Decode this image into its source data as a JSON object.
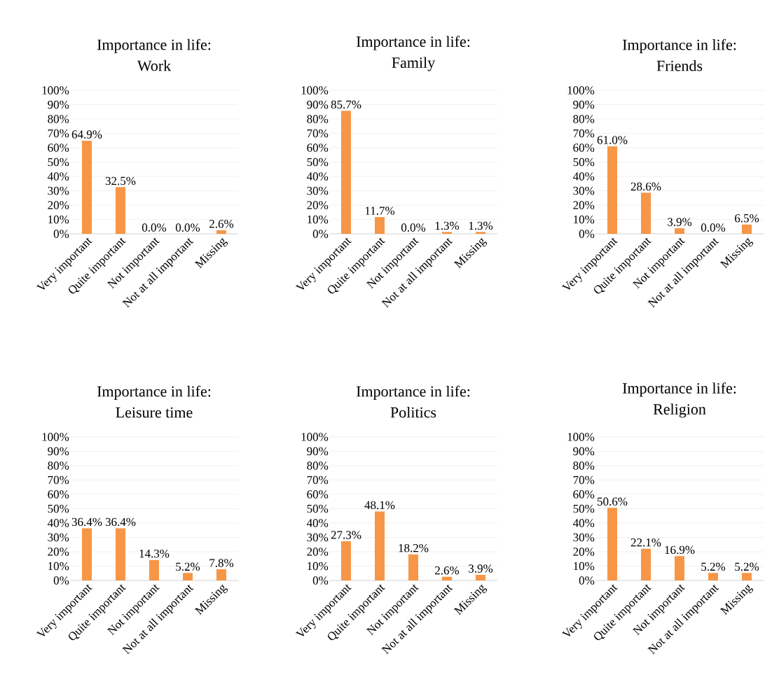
{
  "chart_data": [
    {
      "type": "bar",
      "title": "Importance in life:",
      "subtitle": "Work",
      "categories": [
        "Very important",
        "Quite important",
        "Not important",
        "Not at all important",
        "Missing"
      ],
      "values": [
        64.9,
        32.5,
        0.0,
        0.0,
        2.6
      ],
      "value_labels": [
        "64.9%",
        "32.5%",
        "0.0%",
        "0.0%",
        "2.6%"
      ],
      "color": "#f79646",
      "ylim": [
        0,
        100
      ],
      "yticks": [
        {
          "value": 0,
          "label": "0%"
        },
        {
          "value": 10,
          "label": "10%"
        },
        {
          "value": 20,
          "label": "20%"
        },
        {
          "value": 30,
          "label": "30%"
        },
        {
          "value": 40,
          "label": "40%"
        },
        {
          "value": 50,
          "label": "50%"
        },
        {
          "value": 60,
          "label": "60%"
        },
        {
          "value": 70,
          "label": "70%"
        },
        {
          "value": 80,
          "label": "80%"
        },
        {
          "value": 90,
          "label": "90%"
        },
        {
          "value": 100,
          "label": "100%"
        }
      ],
      "grid": "y"
    },
    {
      "type": "bar",
      "title": "Importance in life:",
      "subtitle": "Family",
      "categories": [
        "Very important",
        "Quite important",
        "Not important",
        "Not at all important",
        "Missing"
      ],
      "values": [
        85.7,
        11.7,
        0.0,
        1.3,
        1.3
      ],
      "value_labels": [
        "85.7%",
        "11.7%",
        "0.0%",
        "1.3%",
        "1.3%"
      ],
      "color": "#f79646",
      "ylim": [
        0,
        100
      ],
      "yticks": [
        {
          "value": 0,
          "label": "0%"
        },
        {
          "value": 10,
          "label": "10%"
        },
        {
          "value": 20,
          "label": "20%"
        },
        {
          "value": 30,
          "label": "30%"
        },
        {
          "value": 40,
          "label": "40%"
        },
        {
          "value": 50,
          "label": "50%"
        },
        {
          "value": 60,
          "label": "60%"
        },
        {
          "value": 70,
          "label": "70%"
        },
        {
          "value": 80,
          "label": "80%"
        },
        {
          "value": 90,
          "label": "90%"
        },
        {
          "value": 100,
          "label": "100%"
        }
      ],
      "grid": "y"
    },
    {
      "type": "bar",
      "title": "Importance in life:",
      "subtitle": "Friends",
      "categories": [
        "Very important",
        "Quite important",
        "Not important",
        "Not at all important",
        "Missing"
      ],
      "values": [
        61.0,
        28.6,
        3.9,
        0.0,
        6.5
      ],
      "value_labels": [
        "61.0%",
        "28.6%",
        "3.9%",
        "0.0%",
        "6.5%"
      ],
      "color": "#f79646",
      "ylim": [
        0,
        100
      ],
      "yticks": [
        {
          "value": 0,
          "label": "0%"
        },
        {
          "value": 10,
          "label": "10%"
        },
        {
          "value": 20,
          "label": "20%"
        },
        {
          "value": 30,
          "label": "30%"
        },
        {
          "value": 40,
          "label": "40%"
        },
        {
          "value": 50,
          "label": "50%"
        },
        {
          "value": 60,
          "label": "60%"
        },
        {
          "value": 70,
          "label": "70%"
        },
        {
          "value": 80,
          "label": "80%"
        },
        {
          "value": 90,
          "label": "90%"
        },
        {
          "value": 100,
          "label": "100%"
        }
      ],
      "grid": "y"
    },
    {
      "type": "bar",
      "title": "Importance in life:",
      "subtitle": "Leisure time",
      "categories": [
        "Very important",
        "Quite important",
        "Not important",
        "Not at all important",
        "Missing"
      ],
      "values": [
        36.4,
        36.4,
        14.3,
        5.2,
        7.8
      ],
      "value_labels": [
        "36.4%",
        "36.4%",
        "14.3%",
        "5.2%",
        "7.8%"
      ],
      "color": "#f79646",
      "ylim": [
        0,
        100
      ],
      "yticks": [
        {
          "value": 0,
          "label": "0%"
        },
        {
          "value": 10,
          "label": "10%"
        },
        {
          "value": 20,
          "label": "20%"
        },
        {
          "value": 30,
          "label": "30%"
        },
        {
          "value": 40,
          "label": "40%"
        },
        {
          "value": 50,
          "label": "50%"
        },
        {
          "value": 60,
          "label": "60%"
        },
        {
          "value": 70,
          "label": "70%"
        },
        {
          "value": 80,
          "label": "80%"
        },
        {
          "value": 90,
          "label": "90%"
        },
        {
          "value": 100,
          "label": "100%"
        }
      ],
      "grid": "y"
    },
    {
      "type": "bar",
      "title": "Importance in life:",
      "subtitle": "Politics",
      "categories": [
        "Very important",
        "Quite important",
        "Not important",
        "Not at all important",
        "Missing"
      ],
      "values": [
        27.3,
        48.1,
        18.2,
        2.6,
        3.9
      ],
      "value_labels": [
        "27.3%",
        "48.1%",
        "18.2%",
        "2.6%",
        "3.9%"
      ],
      "color": "#f79646",
      "ylim": [
        0,
        100
      ],
      "yticks": [
        {
          "value": 0,
          "label": "0%"
        },
        {
          "value": 10,
          "label": "10%"
        },
        {
          "value": 20,
          "label": "20%"
        },
        {
          "value": 30,
          "label": "30%"
        },
        {
          "value": 40,
          "label": "40%"
        },
        {
          "value": 50,
          "label": "50%"
        },
        {
          "value": 60,
          "label": "60%"
        },
        {
          "value": 70,
          "label": "70%"
        },
        {
          "value": 80,
          "label": "80%"
        },
        {
          "value": 90,
          "label": "90%"
        },
        {
          "value": 100,
          "label": "100%"
        }
      ],
      "grid": "y"
    },
    {
      "type": "bar",
      "title": "Importance in life:",
      "subtitle": "Religion",
      "categories": [
        "Very important",
        "Quite important",
        "Not important",
        "Not at all important",
        "Missing"
      ],
      "values": [
        50.6,
        22.1,
        16.9,
        5.2,
        5.2
      ],
      "value_labels": [
        "50.6%",
        "22.1%",
        "16.9%",
        "5.2%",
        "5.2%"
      ],
      "color": "#f79646",
      "ylim": [
        0,
        100
      ],
      "yticks": [
        {
          "value": 0,
          "label": "0%"
        },
        {
          "value": 10,
          "label": "10%"
        },
        {
          "value": 20,
          "label": "20%"
        },
        {
          "value": 30,
          "label": "30%"
        },
        {
          "value": 40,
          "label": "40%"
        },
        {
          "value": 50,
          "label": "50%"
        },
        {
          "value": 60,
          "label": "60%"
        },
        {
          "value": 70,
          "label": "70%"
        },
        {
          "value": 80,
          "label": "80%"
        },
        {
          "value": 90,
          "label": "90%"
        },
        {
          "value": 100,
          "label": "100%"
        }
      ],
      "grid": "y"
    }
  ]
}
